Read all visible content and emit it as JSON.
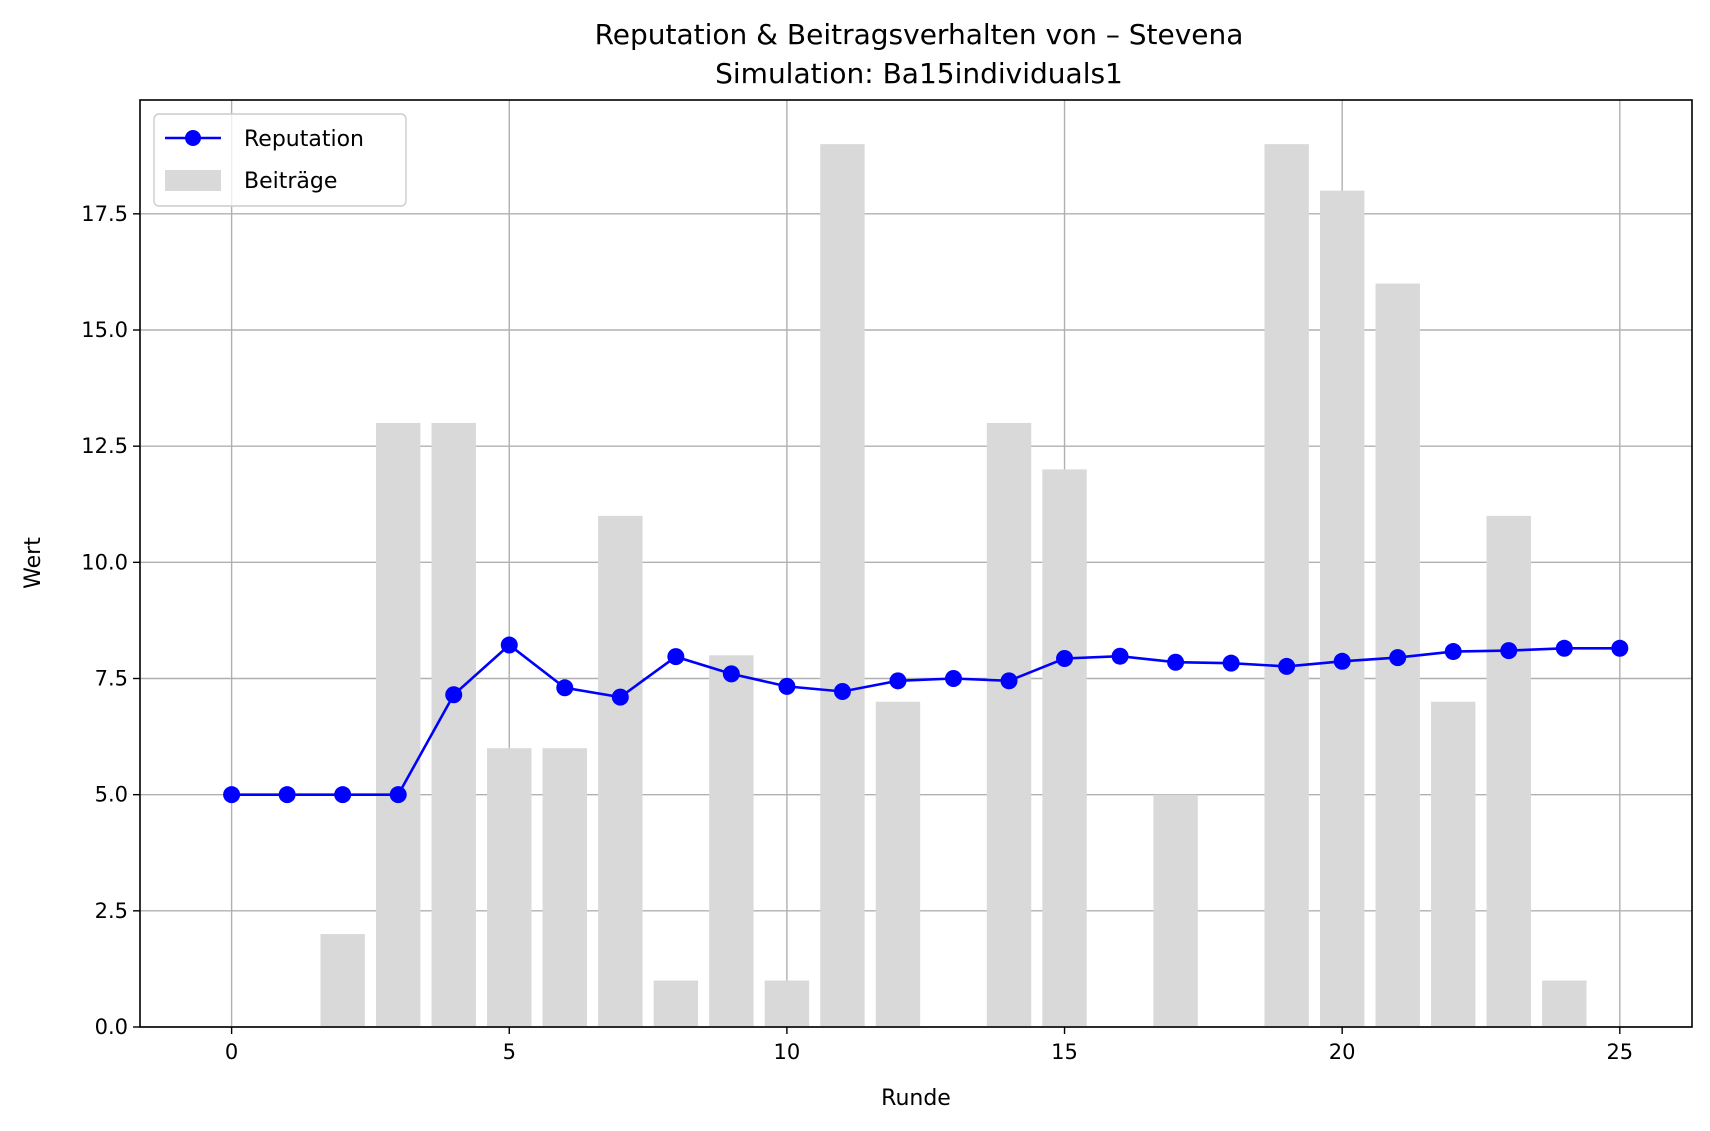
{
  "chart_data": {
    "type": "bar+line",
    "title": "Reputation & Beitragsverhalten von – Stevena",
    "subtitle": "Simulation: Ba15individuals1",
    "xlabel": "Runde",
    "ylabel": "Wert",
    "xlim": [
      -1.65,
      26.3
    ],
    "ylim": [
      0,
      19.95
    ],
    "xticks": [
      0,
      5,
      10,
      15,
      20,
      25
    ],
    "yticks": [
      0.0,
      2.5,
      5.0,
      7.5,
      10.0,
      12.5,
      15.0,
      17.5
    ],
    "grid": true,
    "legend_position": "upper-left",
    "x": [
      0,
      1,
      2,
      3,
      4,
      5,
      6,
      7,
      8,
      9,
      10,
      11,
      12,
      13,
      14,
      15,
      16,
      17,
      18,
      19,
      20,
      21,
      22,
      23,
      24,
      25
    ],
    "series": [
      {
        "name": "Reputation",
        "kind": "line",
        "color": "#0000ff",
        "values": [
          5.0,
          5.0,
          5.0,
          5.0,
          7.15,
          8.22,
          7.3,
          7.1,
          7.97,
          7.6,
          7.33,
          7.22,
          7.45,
          7.5,
          7.45,
          7.93,
          7.98,
          7.85,
          7.83,
          7.76,
          7.87,
          7.95,
          8.08,
          8.1,
          8.15,
          8.15
        ]
      },
      {
        "name": "Beiträge",
        "kind": "bar",
        "color": "#d9d9d9",
        "values": [
          0,
          0,
          2,
          13,
          13,
          6,
          6,
          11,
          1,
          8,
          1,
          19,
          7,
          0,
          13,
          12,
          0,
          5,
          0,
          19,
          18,
          16,
          7,
          11,
          1,
          0
        ]
      }
    ]
  }
}
